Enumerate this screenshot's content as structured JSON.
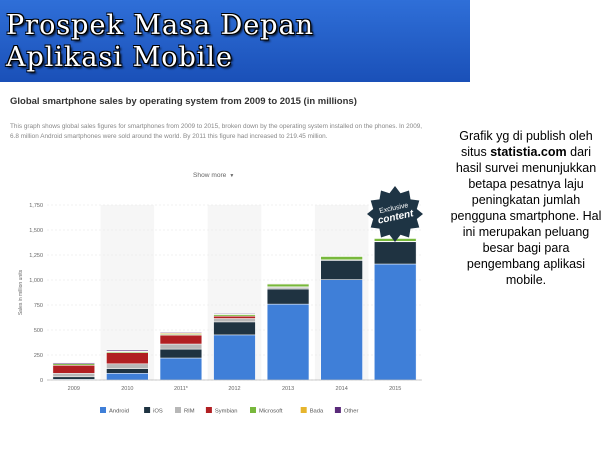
{
  "slide": {
    "title": "Prospek Masa Depan\nAplikasi Mobile",
    "side_text": {
      "before": "Grafik yg di publish oleh situs",
      "source": "statistia.com",
      "after": "dari hasil survei menunjukkan betapa pesatnya laju peningkatan jumlah pengguna smartphone. Hal ini merupakan peluang besar bagi para pengembang aplikasi mobile."
    }
  },
  "screenshot": {
    "title": "Global smartphone sales by operating system from 2009 to 2015 (in millions)",
    "description": "This graph shows global sales figures for smartphones from 2009 to 2015, broken down by the operating system installed on the phones. In 2009, 6.8 million Android smartphones were sold around the world. By 2011 this figure had increased to 219.45 million.",
    "show_more": "Show more",
    "badge": {
      "line1": "Exclusive",
      "line2": "content"
    }
  },
  "chart_data": {
    "type": "bar",
    "stacked": true,
    "categories": [
      "2009",
      "2010",
      "2011*",
      "2012",
      "2013",
      "2014",
      "2015"
    ],
    "ylabel": "Sales in million units",
    "ylim": [
      0,
      1750
    ],
    "yticks": [
      "0",
      "250",
      "500",
      "750",
      "1,000",
      "1,250",
      "1,500",
      "1,750"
    ],
    "grid": true,
    "legend_position": "bottom",
    "series": [
      {
        "name": "Android",
        "color": "#3f7fd8",
        "values": [
          7,
          67,
          220,
          451,
          759,
          1004,
          1160
        ]
      },
      {
        "name": "iOS",
        "color": "#1f3341",
        "values": [
          25,
          47,
          89,
          130,
          151,
          192,
          225
        ]
      },
      {
        "name": "RIM",
        "color": "#b7b7b7",
        "values": [
          35,
          48,
          51,
          34,
          19,
          6,
          2
        ]
      },
      {
        "name": "Symbian",
        "color": "#b11f22",
        "values": [
          80,
          111,
          89,
          24,
          3,
          0,
          0
        ]
      },
      {
        "name": "Microsoft",
        "color": "#78b83c",
        "values": [
          15,
          12,
          9,
          16,
          30,
          35,
          30
        ]
      },
      {
        "name": "Bada",
        "color": "#e6b52d",
        "values": [
          0,
          3,
          9,
          5,
          2,
          0,
          0
        ]
      },
      {
        "name": "Other",
        "color": "#5a2a7a",
        "values": [
          10,
          11,
          8,
          7,
          5,
          3,
          3
        ]
      }
    ]
  }
}
